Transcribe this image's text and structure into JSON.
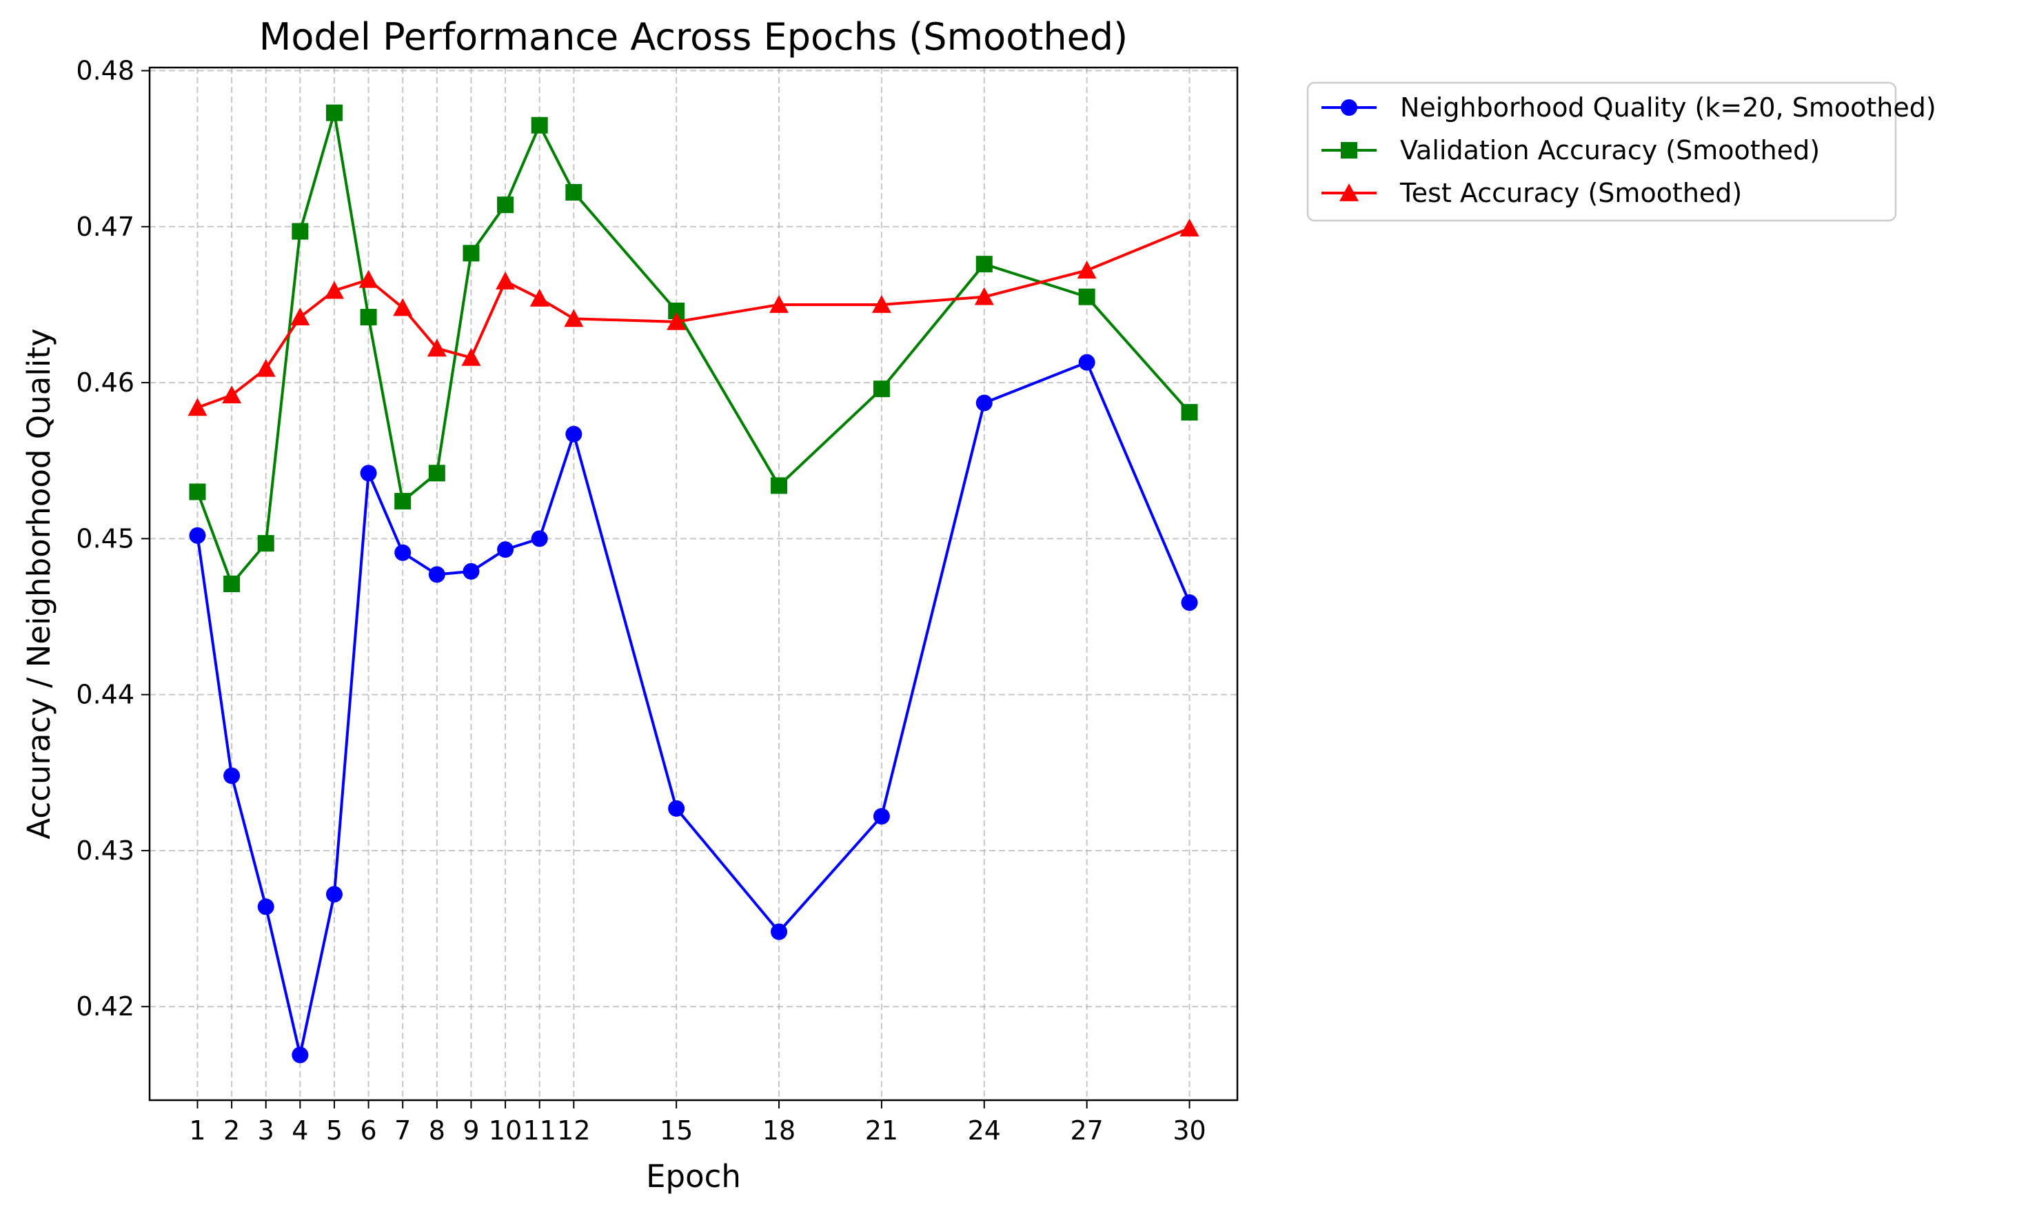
{
  "chart_data": {
    "type": "line",
    "title": "Model Performance Across Epochs (Smoothed)",
    "xlabel": "Epoch",
    "ylabel": "Accuracy / Neighborhood Quality",
    "x": [
      1,
      2,
      3,
      4,
      5,
      6,
      7,
      8,
      9,
      10,
      11,
      12,
      15,
      18,
      21,
      24,
      27,
      30
    ],
    "xticks": [
      "1",
      "2",
      "3",
      "4",
      "5",
      "6",
      "7",
      "8",
      "9",
      "10",
      "11",
      "12",
      "15",
      "18",
      "21",
      "24",
      "27",
      "30"
    ],
    "xlim": [
      -0.4,
      31.4
    ],
    "ylim": [
      0.414,
      0.4802
    ],
    "yticks": [
      "0.42",
      "0.43",
      "0.44",
      "0.45",
      "0.46",
      "0.47",
      "0.48"
    ],
    "grid": true,
    "legend_position": "outside-top-right",
    "series": [
      {
        "name": "Neighborhood Quality (k=20, Smoothed)",
        "color": "#0000ff",
        "marker": "circle",
        "values": [
          0.4502,
          0.4348,
          0.4264,
          0.4169,
          0.4272,
          0.4542,
          0.4491,
          0.4477,
          0.4479,
          0.4493,
          0.45,
          0.4567,
          0.4327,
          0.4248,
          0.4322,
          0.4587,
          0.4613,
          0.4459
        ]
      },
      {
        "name": "Validation Accuracy (Smoothed)",
        "color": "#008000",
        "marker": "square",
        "values": [
          0.453,
          0.4471,
          0.4497,
          0.4697,
          0.4773,
          0.4642,
          0.4524,
          0.4542,
          0.4683,
          0.4714,
          0.4765,
          0.4722,
          0.4646,
          0.4534,
          0.4596,
          0.4676,
          0.4655,
          0.4581
        ]
      },
      {
        "name": "Test Accuracy (Smoothed)",
        "color": "#ff0000",
        "marker": "triangle",
        "values": [
          0.4584,
          0.4592,
          0.4609,
          0.4642,
          0.4659,
          0.4666,
          0.4648,
          0.4622,
          0.4616,
          0.4665,
          0.4654,
          0.4641,
          0.4639,
          0.465,
          0.465,
          0.4655,
          0.4672,
          0.4699
        ]
      }
    ]
  }
}
